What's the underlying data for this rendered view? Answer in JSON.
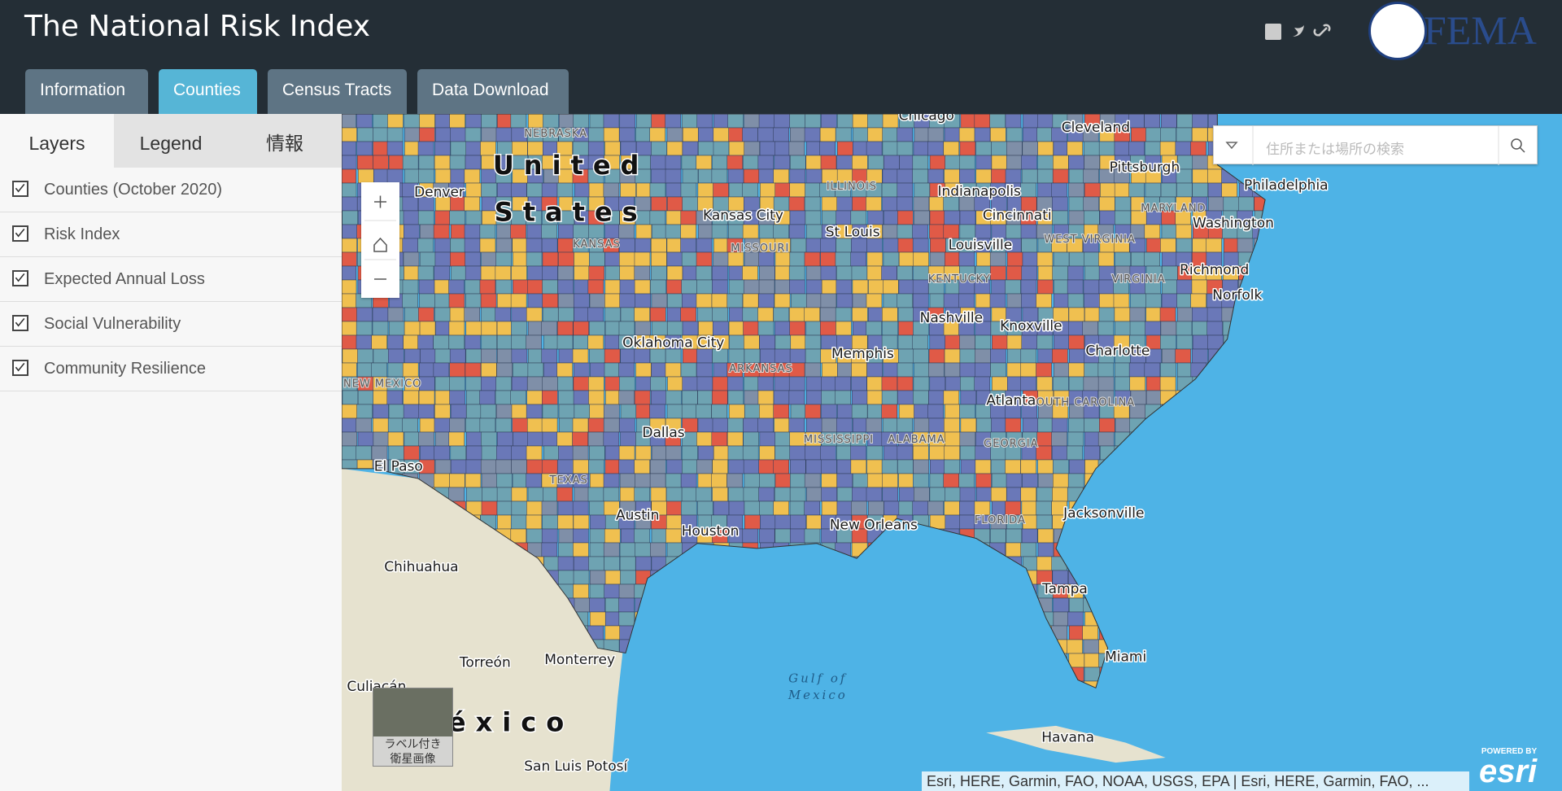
{
  "header": {
    "title": "The National Risk Index",
    "logo_text": "FEMA"
  },
  "nav_tabs": [
    "Information",
    "Counties",
    "Census Tracts",
    "Data Download"
  ],
  "panel_tabs": [
    "Layers",
    "Legend",
    "情報"
  ],
  "layers": [
    "Counties (October 2020)",
    "Risk Index",
    "Expected Annual Loss",
    "Social Vulnerability",
    "Community Resilience"
  ],
  "map": {
    "search_placeholder": "住所または場所の検索",
    "basemap_label": [
      "ラベル付き",
      "衛星画像"
    ],
    "country_labels": [
      "United",
      "States",
      "México"
    ],
    "water_labels": [
      "Gulf of",
      "Mexico"
    ],
    "state_labels": [
      "NEBRASKA",
      "ILLINOIS",
      "MISSOURI",
      "KANSAS",
      "MARYLAND",
      "WEST VIRGINIA",
      "KENTUCKY",
      "VIRGINIA",
      "ARKANSAS",
      "NEW MEXICO",
      "TEXAS",
      "MISSISSIPPI",
      "ALABAMA",
      "GEORGIA",
      "SOUTH CAROLINA",
      "FLORIDA"
    ],
    "city_labels": [
      "Chicago",
      "Cleveland",
      "Pittsburgh",
      "Philadelphia",
      "Denver",
      "Kansas City",
      "Indianapolis",
      "Cincinnati",
      "St Louis",
      "Louisville",
      "Washington",
      "Richmond",
      "Norfolk",
      "Nashville",
      "Knoxville",
      "Charlotte",
      "Oklahoma City",
      "Memphis",
      "Atlanta",
      "Dallas",
      "El Paso",
      "Austin",
      "Houston",
      "New Orleans",
      "Jacksonville",
      "Tampa",
      "Miami",
      "Chihuahua",
      "Torreón",
      "Monterrey",
      "Culiacán",
      "Havana",
      "San Luis Potosí"
    ],
    "attribution": "Esri, HERE, Garmin, FAO, NOAA, USGS, EPA | Esri, HERE, Garmin, FAO, ...",
    "powered_by": "POWERED BY",
    "esri_logo": "esri"
  }
}
